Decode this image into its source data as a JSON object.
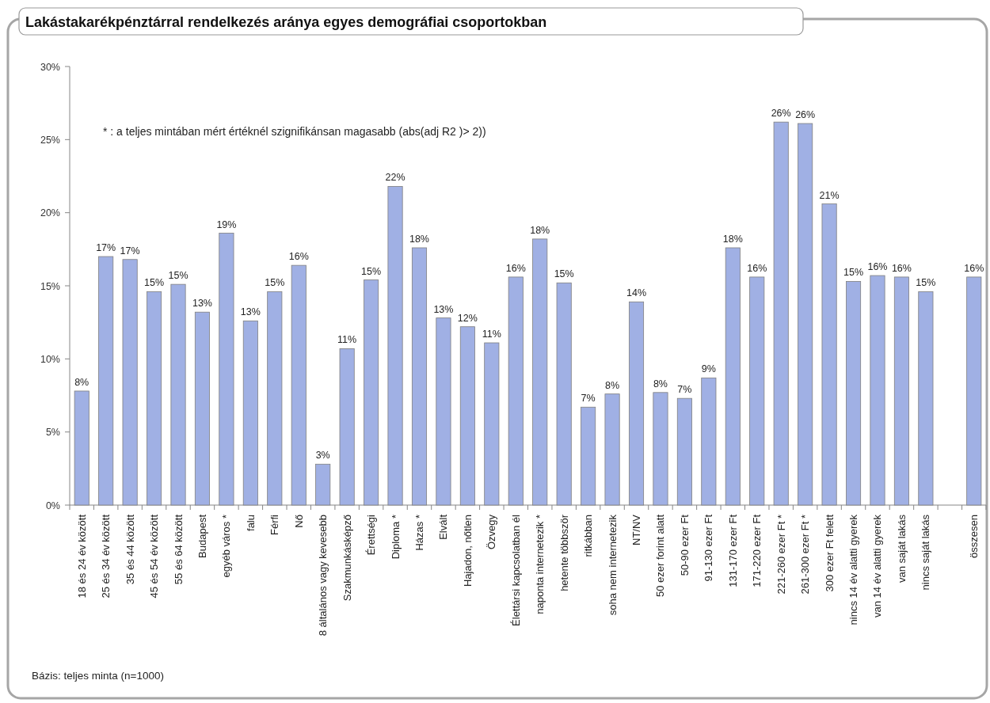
{
  "chart_data": {
    "type": "bar",
    "title": "Lakástakarékpénztárral rendelkezés aránya egyes demográfiai csoportokban",
    "categories": [
      "18 és 24 év között",
      "25 és 34 év között",
      "35 és 44 között",
      "45 és 54 év között",
      "55 és 64 között",
      "Budapest",
      "egyéb város *",
      "falu",
      "Férfi",
      "Nő",
      "8 általános vagy kevesebb",
      "Szakmunkásképző",
      "Érettségi",
      "Diploma *",
      "Házas *",
      "Elvált",
      "Hajadon, nőtlen",
      "Özvegy",
      "Élettársi kapcsolatban él",
      "naponta internetezik *",
      "hetente többször",
      "ritkábban",
      "soha nem internetezik",
      "NT/NV",
      "50 ezer forint alatt",
      "50-90 ezer Ft",
      "91-130 ezer Ft",
      "131-170 ezer Ft",
      "171-220 ezer Ft",
      "221-260 ezer Ft *",
      "261-300 ezer Ft *",
      "300 ezer Ft felett",
      "nincs 14 év alatti gyerek",
      "van 14 év alatti gyerek",
      "van saját lakás",
      "nincs saját lakás",
      null,
      "összesen"
    ],
    "values": [
      7.8,
      17.0,
      16.8,
      14.6,
      15.1,
      13.2,
      18.6,
      12.6,
      14.6,
      16.4,
      2.8,
      10.7,
      15.4,
      21.8,
      17.6,
      12.8,
      12.2,
      11.1,
      15.6,
      18.2,
      15.2,
      6.7,
      7.6,
      13.9,
      7.7,
      7.3,
      8.7,
      17.6,
      15.6,
      26.2,
      26.1,
      20.6,
      15.3,
      15.7,
      15.6,
      14.6,
      null,
      15.6
    ],
    "value_labels": [
      "8%",
      "17%",
      "17%",
      "15%",
      "15%",
      "13%",
      "19%",
      "13%",
      "15%",
      "16%",
      "3%",
      "11%",
      "15%",
      "22%",
      "18%",
      "13%",
      "12%",
      "11%",
      "16%",
      "18%",
      "15%",
      "7%",
      "8%",
      "14%",
      "8%",
      "7%",
      "9%",
      "18%",
      "16%",
      "26%",
      "26%",
      "21%",
      "15%",
      "16%",
      "16%",
      "15%",
      null,
      "16%"
    ],
    "color": "#a0b0e4",
    "ylim": [
      0,
      30
    ],
    "yticks": [
      {
        "value": 0,
        "label": "0%"
      },
      {
        "value": 5,
        "label": "5%"
      },
      {
        "value": 10,
        "label": "10%"
      },
      {
        "value": 15,
        "label": "15%"
      },
      {
        "value": 20,
        "label": "20%"
      },
      {
        "value": 25,
        "label": "25%"
      },
      {
        "value": 30,
        "label": "30%"
      }
    ],
    "annotations": [
      "* : a teljes mintában mért értéknél szignifikánsan magasabb (abs(adj R2 )> 2))",
      "Bázis: teljes minta (n=1000)"
    ]
  }
}
